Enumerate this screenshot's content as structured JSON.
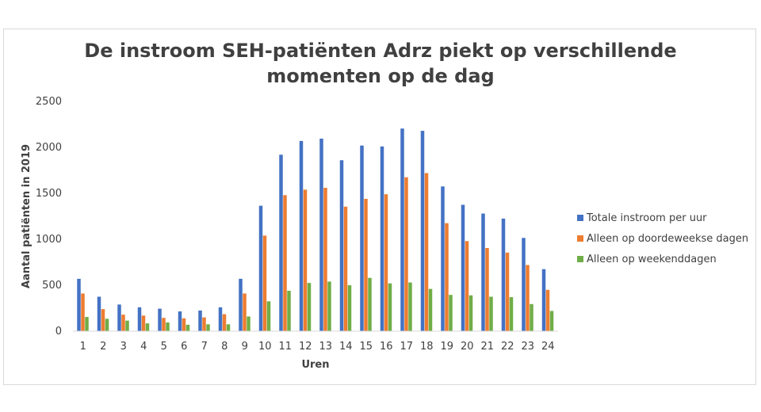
{
  "chart_data": {
    "type": "bar",
    "title": "De instroom SEH-patiënten Adrz piekt op verschillende momenten op de dag",
    "xlabel": "Uren",
    "ylabel": "Aantal patiënten in 2019",
    "ylim": [
      0,
      2500
    ],
    "yticks": [
      "0",
      "500",
      "1000",
      "1500",
      "2000",
      "2500"
    ],
    "grid": false,
    "legend_position": "right",
    "categories": [
      "1",
      "2",
      "3",
      "4",
      "5",
      "6",
      "7",
      "8",
      "9",
      "10",
      "11",
      "12",
      "13",
      "14",
      "15",
      "16",
      "17",
      "18",
      "19",
      "20",
      "21",
      "22",
      "23",
      "24"
    ],
    "series": [
      {
        "name": "Totale instroom per uur",
        "color": "#4472c4",
        "values": [
          570,
          375,
          290,
          260,
          245,
          215,
          225,
          260,
          570,
          1365,
          1920,
          2070,
          2095,
          1860,
          2020,
          2010,
          2205,
          2180,
          1575,
          1375,
          1280,
          1225,
          1015,
          675
        ]
      },
      {
        "name": "Alleen op doordeweekse dagen",
        "color": "#ed7d31",
        "values": [
          410,
          240,
          180,
          170,
          145,
          140,
          150,
          185,
          410,
          1040,
          1480,
          1540,
          1560,
          1355,
          1440,
          1490,
          1675,
          1720,
          1175,
          980,
          905,
          855,
          720,
          450
        ]
      },
      {
        "name": "Alleen op weekenddagen",
        "color": "#70ad47",
        "values": [
          155,
          135,
          115,
          85,
          95,
          70,
          75,
          75,
          160,
          325,
          440,
          525,
          540,
          500,
          580,
          520,
          530,
          460,
          395,
          390,
          375,
          370,
          295,
          220
        ]
      }
    ]
  }
}
